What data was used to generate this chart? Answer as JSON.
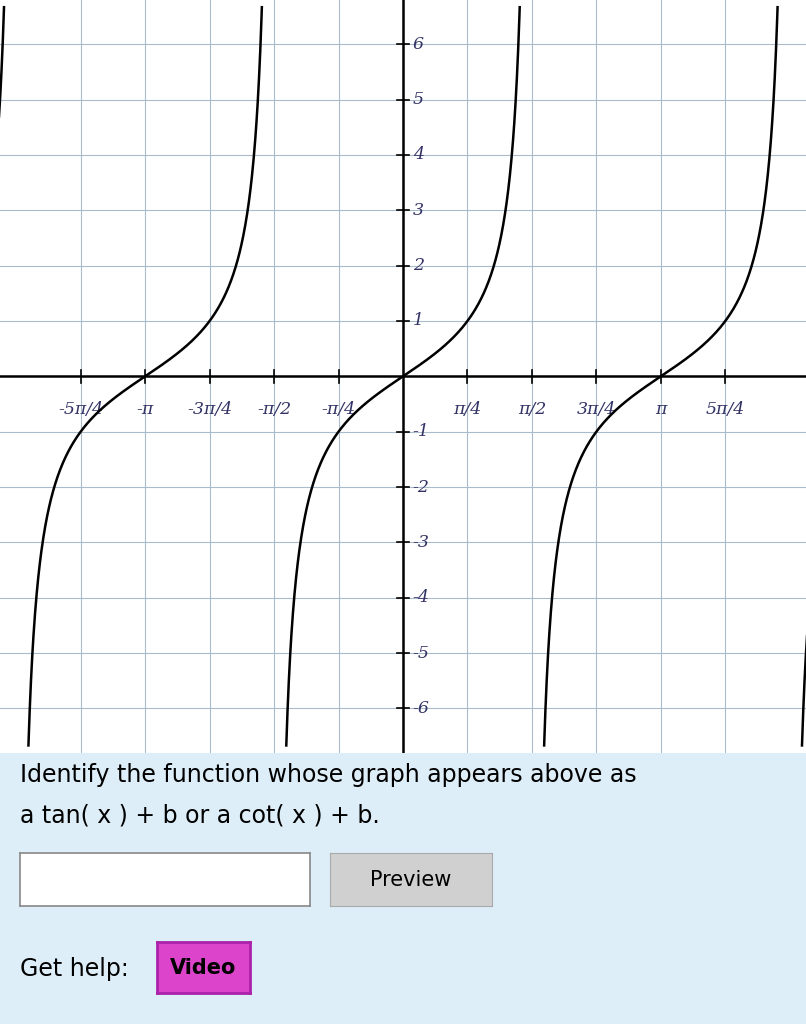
{
  "xlim": [
    -4.91,
    4.91
  ],
  "ylim": [
    -6.8,
    6.8
  ],
  "ytick_values": [
    -6,
    -5,
    -4,
    -3,
    -2,
    -1,
    1,
    2,
    3,
    4,
    5,
    6
  ],
  "xtick_positions": [
    -3.926990816987241,
    -3.141592653589793,
    -2.356194490192345,
    -1.5707963267948966,
    -0.7853981633974483,
    0.7853981633974483,
    1.5707963267948966,
    2.356194490192345,
    3.141592653589793,
    3.926990816987241
  ],
  "xtick_labels": [
    "-5π/4",
    "-π",
    "-3π/4",
    "-π/2",
    "-π/4",
    "π/4",
    "π/2",
    "3π/4",
    "π",
    "5π/4"
  ],
  "background_color": "#ddeef8",
  "plot_bg_color": "#ffffff",
  "grid_color": "#aabccc",
  "curve_color": "#000000",
  "axis_color": "#000000",
  "text_color": "#000000",
  "question_text_line1": "Identify the function whose graph appears above as",
  "question_text_line2": "a tan( x ) + b or a cot( x ) + b.",
  "question_fontsize": 17,
  "preview_text": "Preview",
  "help_text": "Get help:",
  "video_text": "Video",
  "video_bg": "#dd44cc",
  "video_border": "#aa22aa"
}
